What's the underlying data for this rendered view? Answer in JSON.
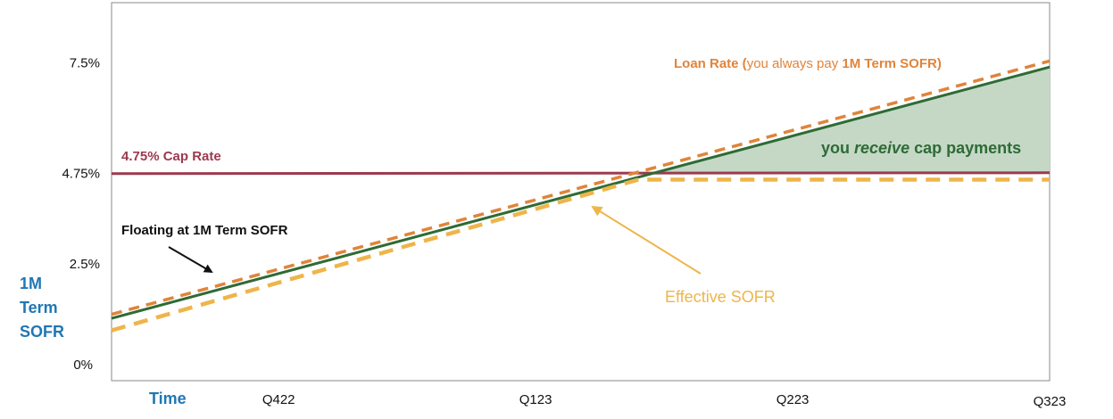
{
  "chart_data": {
    "type": "line",
    "x_axis": {
      "label": "Time",
      "categories": [
        "Q422",
        "Q123",
        "Q223",
        "Q323"
      ]
    },
    "y_axis": {
      "label_lines": [
        "1M",
        "Term",
        "SOFR"
      ],
      "ticks": [
        {
          "value": 0,
          "label": "0%"
        },
        {
          "value": 2.5,
          "label": "2.5%"
        },
        {
          "value": 4.75,
          "label": "4.75%"
        },
        {
          "value": 7.5,
          "label": "7.5%"
        }
      ],
      "ylim": [
        -0.4,
        9.0
      ]
    },
    "xlim": [
      -0.65,
      3.0
    ],
    "series": [
      {
        "key": "cap",
        "style": "solid",
        "color": "#9b3a4e",
        "points": [
          [
            -0.65,
            4.75
          ],
          [
            3.0,
            4.77
          ]
        ]
      },
      {
        "key": "loan",
        "style": "dashed",
        "color": "#e0843a",
        "points": [
          [
            -0.65,
            1.25
          ],
          [
            3.0,
            7.55
          ]
        ]
      },
      {
        "key": "floating",
        "style": "solid",
        "color": "#2e6b35",
        "points": [
          [
            -0.65,
            1.15
          ],
          [
            3.0,
            7.4
          ]
        ]
      },
      {
        "key": "effective",
        "style": "dashed",
        "color": "#eeb54a",
        "points": [
          [
            -0.65,
            0.85
          ],
          [
            1.4,
            4.6
          ],
          [
            3.0,
            4.6
          ]
        ]
      }
    ],
    "shaded_area": {
      "color": "#c5d8c6",
      "between": [
        "floating",
        "cap"
      ],
      "x_from": 1.47,
      "x_to": 3.0
    },
    "annotations": {
      "cap_rate": "4.75% Cap Rate",
      "floating": "Floating at 1M Term SOFR",
      "loan_prefix": "Loan Rate (",
      "loan_mid": "you always pay ",
      "loan_bold": "1M Term SOFR",
      "loan_suffix": ")",
      "receive_prefix": "you ",
      "receive_italic": "receive",
      "receive_suffix": " cap payments",
      "effective": "Effective SOFR"
    },
    "arrow_colors": {
      "floating": "#111111",
      "effective": "#eeb54a"
    }
  }
}
